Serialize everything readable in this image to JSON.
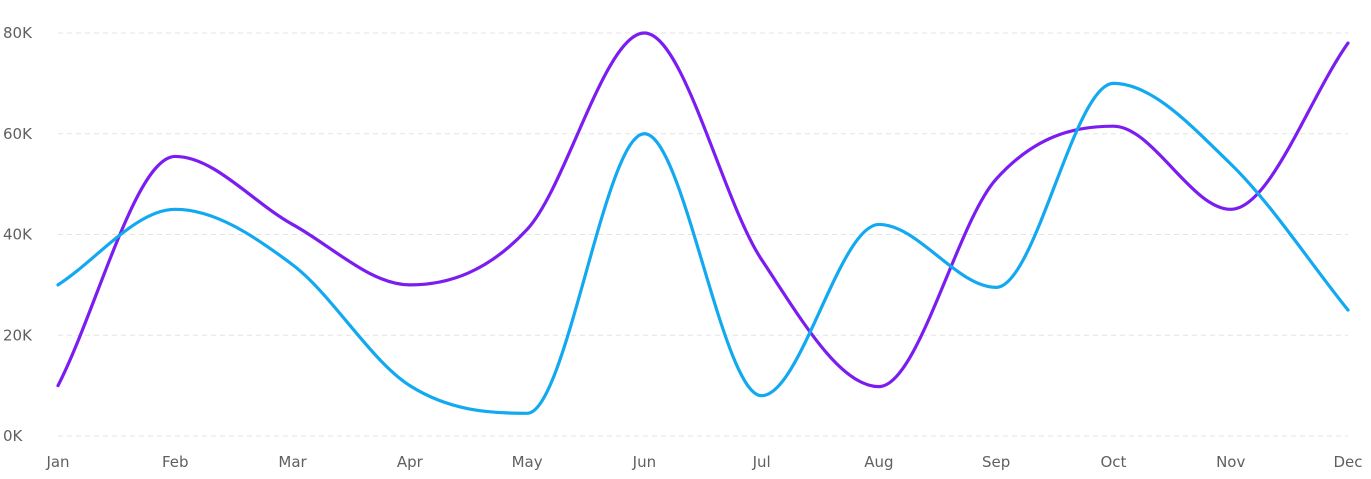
{
  "chart_data": {
    "type": "line",
    "curve": "smooth",
    "categories": [
      "Jan",
      "Feb",
      "Mar",
      "Apr",
      "May",
      "Jun",
      "Jul",
      "Aug",
      "Sep",
      "Oct",
      "Nov",
      "Dec"
    ],
    "series": [
      {
        "color": "#7b1df0",
        "values": [
          10000,
          55500,
          42000,
          30000,
          41000,
          80000,
          35000,
          9800,
          51000,
          61500,
          45000,
          78000
        ]
      },
      {
        "color": "#12a9f0",
        "values": [
          30000,
          45000,
          34000,
          10000,
          4500,
          60000,
          8000,
          42000,
          29500,
          70000,
          54000,
          25000
        ]
      }
    ],
    "y_ticks": [
      "0K",
      "20K",
      "40K",
      "60K",
      "80K"
    ],
    "ylim": [
      0,
      80000
    ],
    "grid": true,
    "legend": false
  }
}
